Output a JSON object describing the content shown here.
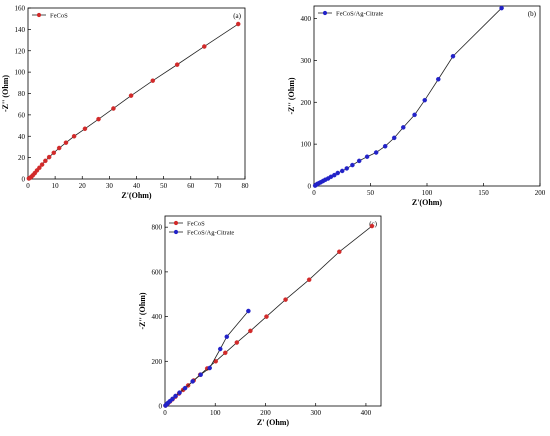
{
  "colors": {
    "fecos": "#d12a2a",
    "fecos_ag": "#2222c8",
    "axis": "#000000"
  },
  "chart_data": [
    {
      "type": "line",
      "panel_label": "(a)",
      "xlabel": "Z'(Ohm)",
      "ylabel": "-Z'' (Ohm)",
      "xlim": [
        0,
        80
      ],
      "ylim": [
        0,
        160
      ],
      "xticks": [
        0,
        10,
        20,
        30,
        40,
        50,
        60,
        70,
        80
      ],
      "yticks": [
        0,
        20,
        40,
        60,
        80,
        100,
        120,
        140,
        160
      ],
      "legend_position": "top-left",
      "series": [
        {
          "name": "FeCoS",
          "color": "#d12a2a",
          "x": [
            0.3,
            0.7,
            1.2,
            1.8,
            2.5,
            3.3,
            4.2,
            5.2,
            6.4,
            7.8,
            9.5,
            11.5,
            14.0,
            17.0,
            21.0,
            26.0,
            31.5,
            38.0,
            46.0,
            55.0,
            65.0,
            77.5
          ],
          "y": [
            0.5,
            1.0,
            2.0,
            3.5,
            5.5,
            8.0,
            10.5,
            13.5,
            17.0,
            20.5,
            24.5,
            29.0,
            34.0,
            40.0,
            47.0,
            56.0,
            66.0,
            78.0,
            92.0,
            107.0,
            124.0,
            145.0
          ]
        }
      ]
    },
    {
      "type": "line",
      "panel_label": "(b)",
      "xlabel": "Z'(Ohm)",
      "ylabel": "-Z'' (Ohm)",
      "xlim": [
        0,
        200
      ],
      "ylim": [
        0,
        430
      ],
      "xticks": [
        0,
        50,
        100,
        150,
        200
      ],
      "yticks": [
        0,
        100,
        200,
        300,
        400
      ],
      "legend_position": "top-left",
      "series": [
        {
          "name": "FeCoS/Ag-Citrate",
          "color": "#2222c8",
          "x": [
            1,
            2,
            3,
            4.5,
            6,
            8,
            10,
            12.5,
            15,
            18,
            21,
            25,
            29,
            34,
            40,
            47,
            55,
            63,
            71,
            79,
            89,
            98,
            110,
            123,
            166
          ],
          "y": [
            1,
            3,
            5,
            7,
            9,
            12,
            15,
            18,
            22,
            26,
            31,
            36,
            42,
            50,
            60,
            70,
            80,
            95,
            115,
            140,
            170,
            205,
            255,
            310,
            425
          ]
        }
      ]
    },
    {
      "type": "line",
      "panel_label": "(c)",
      "xlabel": "Z' (Ohm)",
      "ylabel": "-Z'' (Ohm)",
      "xlim": [
        0,
        430
      ],
      "ylim": [
        0,
        850
      ],
      "xticks": [
        0,
        100,
        200,
        300,
        400
      ],
      "yticks": [
        0,
        200,
        400,
        600,
        800
      ],
      "legend_position": "top-left",
      "series": [
        {
          "name": "FeCoS",
          "color": "#d12a2a",
          "x": [
            1,
            3,
            6,
            10,
            15,
            21,
            28,
            36,
            46,
            57,
            70,
            84,
            101,
            120,
            143,
            170,
            202,
            240,
            287,
            347,
            412
          ],
          "y": [
            2,
            6,
            12,
            20,
            30,
            42,
            56,
            72,
            92,
            114,
            140,
            168,
            200,
            238,
            284,
            336,
            400,
            476,
            565,
            690,
            805
          ]
        },
        {
          "name": "FeCoS/Ag-Citrate",
          "color": "#2222c8",
          "x": [
            1,
            2,
            4,
            6,
            10,
            15,
            21,
            29,
            40,
            55,
            71,
            89,
            110,
            123,
            166
          ],
          "y": [
            2,
            5,
            9,
            14,
            22,
            32,
            45,
            60,
            80,
            110,
            140,
            170,
            255,
            310,
            425
          ]
        }
      ]
    }
  ]
}
